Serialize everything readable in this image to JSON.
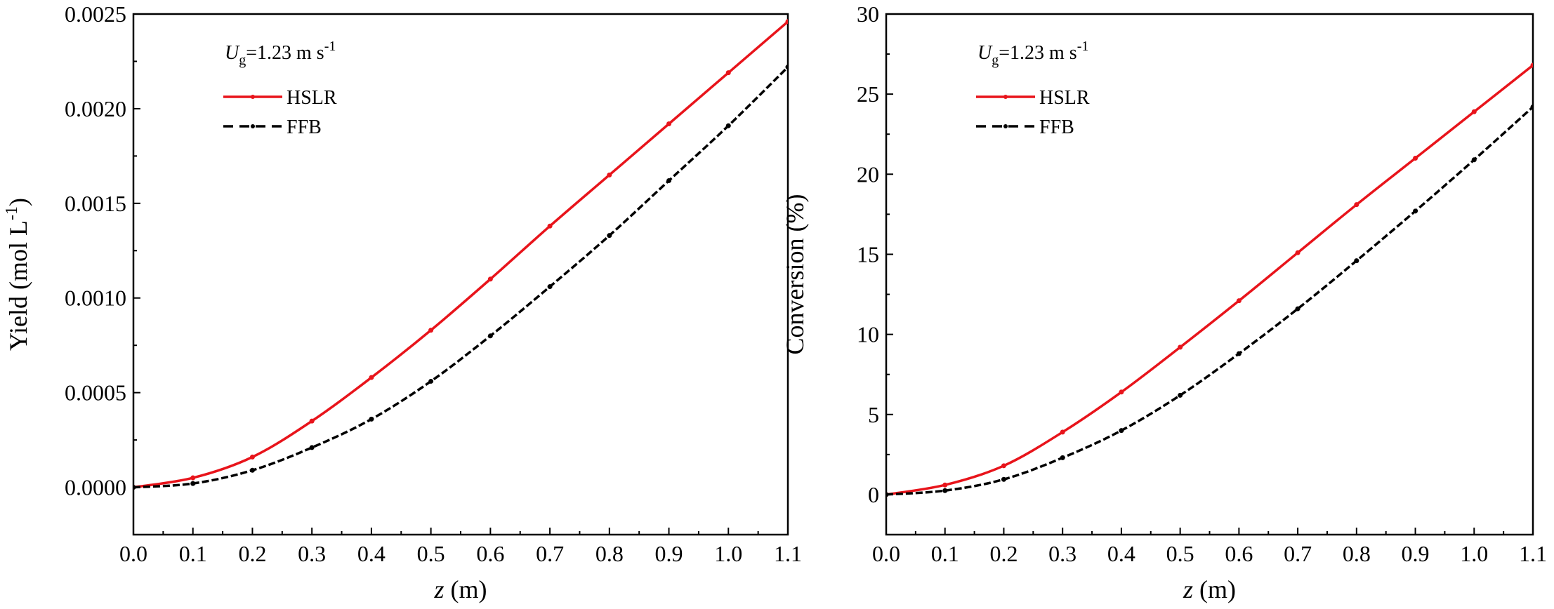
{
  "chart_data": [
    {
      "type": "line",
      "xlabel": "z (m)",
      "xlabel_var": "z",
      "xlabel_unit": " (m)",
      "ylabel": "Yield (mol L-1)",
      "ylabel_prefix": "Yield (mol L",
      "ylabel_sup": "-1",
      "ylabel_suffix": ")",
      "xlim": [
        0.0,
        1.1
      ],
      "ylim": [
        -0.00025,
        0.0025
      ],
      "xticks": [
        "0.0",
        "0.1",
        "0.2",
        "0.3",
        "0.4",
        "0.5",
        "0.6",
        "0.7",
        "0.8",
        "0.9",
        "1.0",
        "1.1"
      ],
      "yticks": [
        "0.0000",
        "0.0005",
        "0.0010",
        "0.0015",
        "0.0020",
        "0.0025"
      ],
      "annotation": {
        "var": "U",
        "sub": "g",
        "text": "=1.23 m s",
        "sup": "-1"
      },
      "legend_position": "top-left",
      "grid": false,
      "x": [
        0.0,
        0.1,
        0.2,
        0.3,
        0.4,
        0.5,
        0.6,
        0.7,
        0.8,
        0.9,
        1.0,
        1.1
      ],
      "series": [
        {
          "name": "HSLR",
          "color": "#e8141b",
          "style": "solid",
          "values": [
            0.0,
            5e-05,
            0.00016,
            0.00035,
            0.00058,
            0.00083,
            0.0011,
            0.00138,
            0.00165,
            0.00192,
            0.00219,
            0.00246
          ]
        },
        {
          "name": "FFB",
          "color": "#000000",
          "style": "dashed",
          "values": [
            0.0,
            2e-05,
            9e-05,
            0.00021,
            0.00036,
            0.00056,
            0.0008,
            0.00106,
            0.00133,
            0.00162,
            0.00191,
            0.00222
          ]
        }
      ]
    },
    {
      "type": "line",
      "xlabel": "z (m)",
      "xlabel_var": "z",
      "xlabel_unit": " (m)",
      "ylabel": "Conversion (%)",
      "ylabel_prefix": "Conversion (%)",
      "ylabel_sup": "",
      "ylabel_suffix": "",
      "xlim": [
        0.0,
        1.1
      ],
      "ylim": [
        -2.5,
        30
      ],
      "xticks": [
        "0.0",
        "0.1",
        "0.2",
        "0.3",
        "0.4",
        "0.5",
        "0.6",
        "0.7",
        "0.8",
        "0.9",
        "1.0",
        "1.1"
      ],
      "yticks": [
        "0",
        "5",
        "10",
        "15",
        "20",
        "25",
        "30"
      ],
      "annotation": {
        "var": "U",
        "sub": "g",
        "text": "=1.23 m s",
        "sup": "-1"
      },
      "legend_position": "top-left",
      "grid": false,
      "x": [
        0.0,
        0.1,
        0.2,
        0.3,
        0.4,
        0.5,
        0.6,
        0.7,
        0.8,
        0.9,
        1.0,
        1.1
      ],
      "series": [
        {
          "name": "HSLR",
          "color": "#e8141b",
          "style": "solid",
          "values": [
            0.0,
            0.6,
            1.8,
            3.9,
            6.4,
            9.2,
            12.1,
            15.1,
            18.1,
            21.0,
            23.9,
            26.8
          ]
        },
        {
          "name": "FFB",
          "color": "#000000",
          "style": "dashed",
          "values": [
            0.0,
            0.25,
            0.95,
            2.3,
            4.0,
            6.2,
            8.8,
            11.6,
            14.6,
            17.7,
            20.9,
            24.2
          ]
        }
      ]
    }
  ]
}
